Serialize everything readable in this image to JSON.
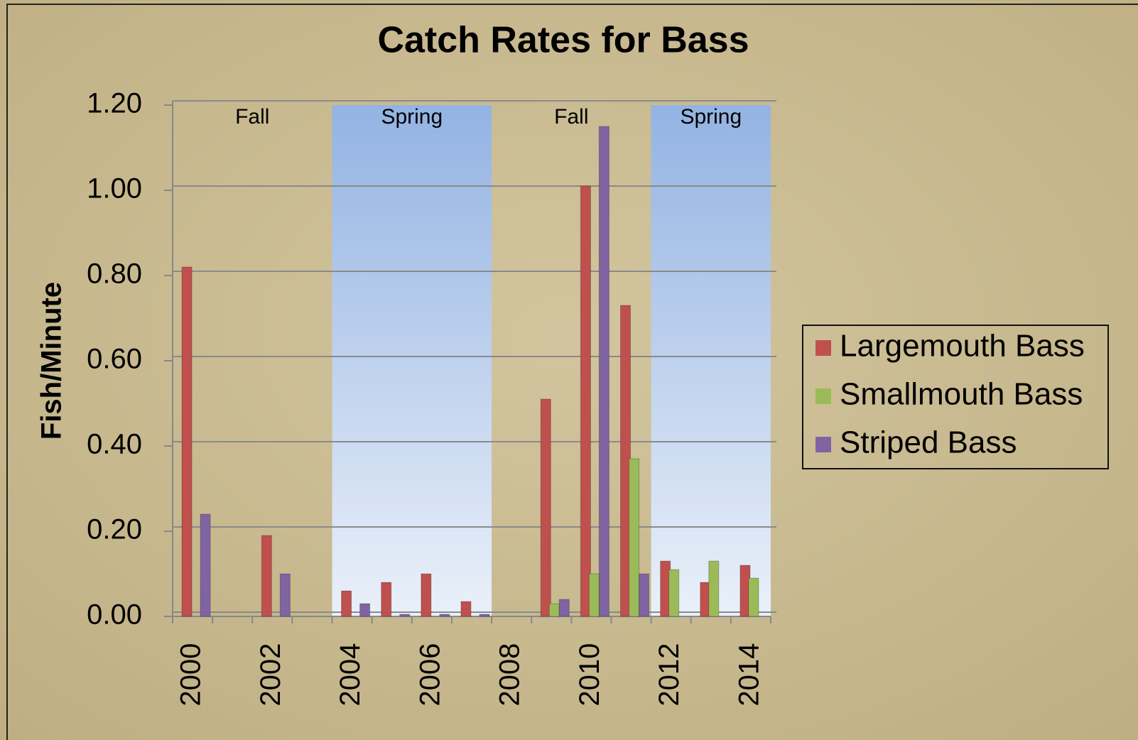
{
  "chart_data": {
    "type": "bar",
    "title": "Catch Rates for Bass",
    "y_label": "Fish/Minute",
    "categories": [
      "2000",
      null,
      "2002",
      null,
      "2004",
      null,
      "2006",
      null,
      "2008",
      null,
      "2010",
      null,
      "2012",
      null,
      "2014"
    ],
    "series": [
      {
        "name": "Largemouth Bass",
        "color": "#c0504d",
        "values": [
          0.82,
          null,
          0.19,
          null,
          0.06,
          0.08,
          0.1,
          0.035,
          null,
          0.51,
          1.01,
          0.73,
          0.13,
          0.08,
          0.12
        ]
      },
      {
        "name": "Smallmouth Bass",
        "color": "#9bbb59",
        "values": [
          null,
          null,
          null,
          null,
          null,
          null,
          null,
          null,
          null,
          0.03,
          0.1,
          0.37,
          0.11,
          0.13,
          0.09
        ]
      },
      {
        "name": "Striped Bass",
        "color": "#8064a2",
        "values": [
          0.24,
          null,
          0.1,
          null,
          0.03,
          0.005,
          0.005,
          0.005,
          null,
          0.04,
          1.15,
          0.1,
          null,
          null,
          null
        ]
      }
    ],
    "regions": [
      {
        "label": "Fall",
        "shaded": false,
        "start_index": 0,
        "end_index": 3
      },
      {
        "label": "Spring",
        "shaded": true,
        "start_index": 4,
        "end_index": 7
      },
      {
        "label": "Fall",
        "shaded": false,
        "start_index": 8,
        "end_index": 11
      },
      {
        "label": "Spring",
        "shaded": true,
        "start_index": 12,
        "end_index": 14
      }
    ],
    "ylim": [
      0,
      1.2
    ],
    "yticks": [
      {
        "value": 0,
        "label": "0.00"
      },
      {
        "value": 0.2,
        "label": "0.20"
      },
      {
        "value": 0.4,
        "label": "0.40"
      },
      {
        "value": 0.6,
        "label": "0.60"
      },
      {
        "value": 0.8,
        "label": "0.80"
      },
      {
        "value": 1.0,
        "label": "1.00"
      },
      {
        "value": 1.2,
        "label": "1.20"
      }
    ],
    "grid": true,
    "legend": "right"
  }
}
